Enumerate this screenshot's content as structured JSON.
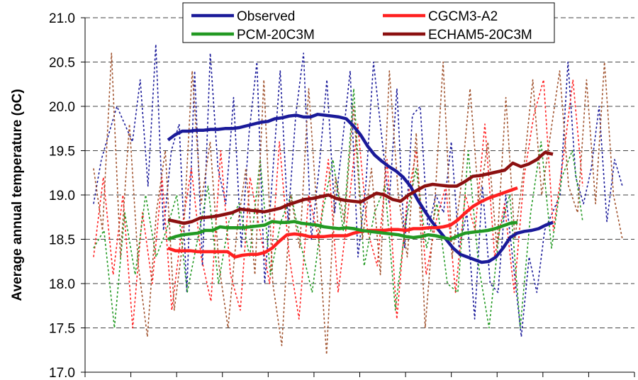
{
  "chart_data": {
    "type": "line",
    "title": "",
    "xlabel": "",
    "ylabel": "Average annual temperature (oC)",
    "ylim": [
      17.0,
      21.0
    ],
    "yticks": [
      "17.0",
      "17.5",
      "18.0",
      "18.5",
      "19.0",
      "19.5",
      "20.0",
      "20.5",
      "21.0"
    ],
    "x_tick_count": 12,
    "grid": "horizontal dashed",
    "legend_position": "top",
    "series": [
      {
        "name": "Observed",
        "style": "solid",
        "color": "#1a1a99",
        "values": [
          19.62,
          19.68,
          19.72,
          19.72,
          19.73,
          19.73,
          19.74,
          19.74,
          19.75,
          19.75,
          19.76,
          19.78,
          19.8,
          19.82,
          19.83,
          19.86,
          19.87,
          19.89,
          19.9,
          19.88,
          19.88,
          19.91,
          19.9,
          19.89,
          19.88,
          19.86,
          19.78,
          19.68,
          19.55,
          19.45,
          19.38,
          19.32,
          19.27,
          19.2,
          19.1,
          18.95,
          18.82,
          18.7,
          18.6,
          18.5,
          18.4,
          18.33,
          18.3,
          18.27,
          18.24,
          18.25,
          18.3,
          18.4,
          18.52,
          18.57,
          18.59,
          18.6,
          18.62,
          18.66,
          18.69
        ]
      },
      {
        "name": "CGCM3-A2",
        "style": "solid",
        "color": "#ff2020",
        "values": [
          18.4,
          18.37,
          18.37,
          18.37,
          18.36,
          18.36,
          18.36,
          18.36,
          18.36,
          18.3,
          18.32,
          18.33,
          18.33,
          18.35,
          18.4,
          18.48,
          18.55,
          18.56,
          18.55,
          18.53,
          18.53,
          18.53,
          18.54,
          18.54,
          18.54,
          18.57,
          18.59,
          18.6,
          18.6,
          18.6,
          18.61,
          18.61,
          18.6,
          18.62,
          18.62,
          18.63,
          18.63,
          18.64,
          18.66,
          18.72,
          18.8,
          18.87,
          18.92,
          18.96,
          18.99,
          19.02,
          19.05,
          19.08
        ]
      },
      {
        "name": "PCM-20C3M",
        "style": "solid",
        "color": "#229922",
        "values": [
          18.5,
          18.53,
          18.55,
          18.56,
          18.57,
          18.6,
          18.6,
          18.64,
          18.63,
          18.63,
          18.63,
          18.64,
          18.65,
          18.66,
          18.7,
          18.69,
          18.69,
          18.7,
          18.68,
          18.67,
          18.66,
          18.64,
          18.63,
          18.62,
          18.63,
          18.62,
          18.6,
          18.59,
          18.58,
          18.57,
          18.56,
          18.55,
          18.53,
          18.52,
          18.53,
          18.55,
          18.54,
          18.52,
          18.5,
          18.54,
          18.57,
          18.58,
          18.59,
          18.6,
          18.62,
          18.65,
          18.68,
          18.69
        ]
      },
      {
        "name": "ECHAM5-20C3M",
        "style": "solid",
        "color": "#8b1010",
        "values": [
          18.72,
          18.7,
          18.68,
          18.7,
          18.74,
          18.75,
          18.76,
          18.78,
          18.8,
          18.84,
          18.83,
          18.82,
          18.81,
          18.83,
          18.85,
          18.89,
          18.92,
          18.95,
          18.96,
          18.98,
          19.0,
          18.96,
          18.94,
          18.93,
          18.92,
          18.97,
          19.02,
          19.0,
          18.95,
          18.93,
          19.0,
          19.05,
          19.1,
          19.12,
          19.11,
          19.1,
          19.1,
          19.15,
          19.21,
          19.22,
          19.24,
          19.26,
          19.28,
          19.36,
          19.32,
          19.35,
          19.4,
          19.48,
          19.46
        ]
      },
      {
        "name": "",
        "style": "dotted",
        "color": "#1a1a99",
        "values": [
          18.9,
          19.4,
          19.7,
          20.0,
          19.8,
          19.6,
          20.3,
          19.1,
          20.7,
          18.6,
          19.5,
          19.8,
          17.9,
          20.4,
          18.2,
          20.6,
          19.3,
          18.9,
          20.1,
          18.4,
          19.7,
          20.5,
          18.0,
          19.2,
          20.4,
          18.7,
          19.9,
          20.6,
          18.5,
          19.3,
          20.3,
          18.8,
          19.6,
          20.4,
          18.3,
          19.1,
          20.5,
          19.7,
          18.9,
          20.2,
          18.4,
          19.9,
          20.0,
          18.6,
          19.0,
          18.8,
          19.6,
          18.4,
          18.8,
          17.6,
          19.1,
          18.0,
          17.9,
          19.0,
          18.2,
          17.4,
          18.3,
          17.9,
          18.6,
          18.8,
          19.0,
          20.5,
          19.2,
          18.9,
          19.3,
          20.0,
          18.7,
          19.4,
          19.1
        ]
      },
      {
        "name": "",
        "style": "dotted",
        "color": "#ff2020",
        "values": [
          18.3,
          19.2,
          18.1,
          19.0,
          17.5,
          18.8,
          18.0,
          19.2,
          17.7,
          18.6,
          19.3,
          18.3,
          17.8,
          19.5,
          18.1,
          17.7,
          19.2,
          18.6,
          18.0,
          19.6,
          18.3,
          17.6,
          19.0,
          18.5,
          19.4,
          17.9,
          18.8,
          19.8,
          18.6,
          18.2,
          19.4,
          17.6,
          18.9,
          19.5,
          18.1,
          18.7,
          19.1,
          17.9,
          19.0,
          18.6,
          19.8,
          18.3,
          18.9,
          17.9,
          19.2,
          19.9,
          20.3,
          18.6,
          19.4,
          20.3,
          19.1
        ]
      },
      {
        "name": "",
        "style": "dotted",
        "color": "#229922",
        "values": [
          18.4,
          18.6,
          17.5,
          18.8,
          18.1,
          19.0,
          18.3,
          18.6,
          19.0,
          17.9,
          18.5,
          19.1,
          18.0,
          18.7,
          18.9,
          18.3,
          19.4,
          18.1,
          18.7,
          19.0,
          18.4,
          17.9,
          18.8,
          19.4,
          18.6,
          20.2,
          18.2,
          18.8,
          19.1,
          17.7,
          18.7,
          19.3,
          18.4,
          18.9,
          18.0,
          17.9,
          19.5,
          18.2,
          17.5,
          18.6,
          19.0,
          17.5,
          18.8,
          19.6,
          18.4,
          19.2,
          19.5,
          18.7
        ]
      },
      {
        "name": "",
        "style": "dotted",
        "color": "#a0522d",
        "values": [
          19.3,
          18.6,
          20.6,
          18.3,
          19.8,
          18.2,
          17.4,
          18.8,
          19.5,
          17.7,
          18.5,
          20.4,
          18.9,
          19.6,
          18.2,
          17.5,
          18.6,
          19.3,
          18.1,
          20.3,
          18.0,
          17.3,
          19.0,
          18.4,
          20.2,
          18.7,
          17.2,
          19.2,
          18.7,
          20.0,
          18.5,
          19.3,
          18.1,
          20.4,
          19.0,
          18.3,
          19.7,
          17.5,
          18.8,
          20.5,
          18.3,
          19.1,
          20.2,
          18.9,
          19.6,
          18.4,
          20.1,
          18.5,
          19.3,
          20.3,
          19.0,
          19.7,
          20.4,
          19.1,
          18.8,
          20.3,
          18.9,
          20.5,
          19.0,
          18.5
        ]
      }
    ]
  }
}
